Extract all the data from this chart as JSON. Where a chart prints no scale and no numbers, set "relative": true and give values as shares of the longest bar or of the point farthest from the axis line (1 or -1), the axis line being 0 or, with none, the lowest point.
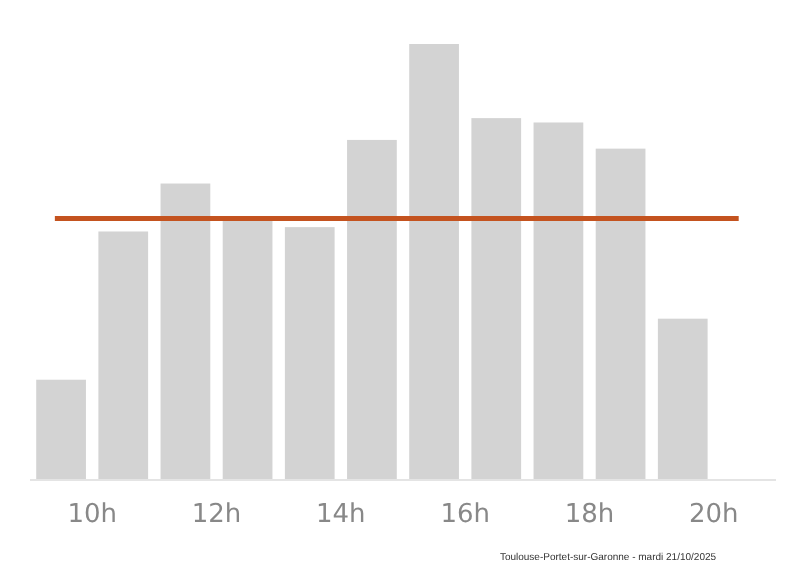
{
  "chart_data": {
    "type": "bar",
    "relative": true,
    "x": [
      9.5,
      10.5,
      11.5,
      12.5,
      13.5,
      14.5,
      15.5,
      16.5,
      17.5,
      18.5,
      19.5
    ],
    "values": [
      0.23,
      0.57,
      0.68,
      0.6,
      0.58,
      0.78,
      1,
      0.83,
      0.82,
      0.76,
      0.37
    ],
    "color": "#d3d3d3",
    "xlim": [
      9,
      21
    ],
    "xticks": [
      {
        "value": 10,
        "label": "10h"
      },
      {
        "value": 12,
        "label": "12h"
      },
      {
        "value": 14,
        "label": "14h"
      },
      {
        "value": 16,
        "label": "16h"
      },
      {
        "value": 18,
        "label": "18h"
      },
      {
        "value": 20,
        "label": "20h"
      }
    ],
    "ref_lines": [
      {
        "axis": "y",
        "value": 0.6,
        "color": "#c4531f"
      }
    ],
    "grid": false,
    "annotations": [
      "Toulouse-Portet-sur-Garonne - mardi 21/10/2025"
    ]
  }
}
